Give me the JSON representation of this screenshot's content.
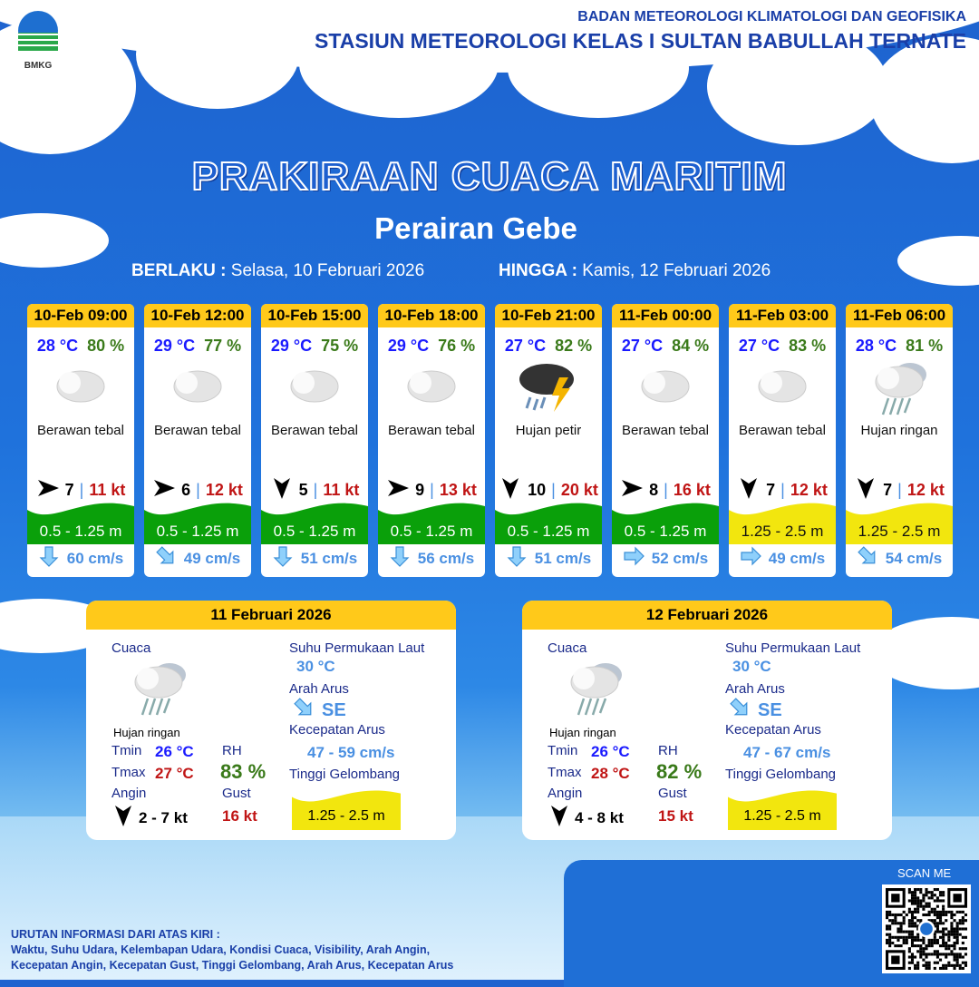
{
  "header": {
    "org": "BADAN METEOROLOGI KLIMATOLOGI DAN GEOFISIKA",
    "station": "STASIUN METEOROLOGI KELAS I SULTAN BABULLAH TERNATE",
    "logo_text": "BMKG"
  },
  "title": "PRAKIRAAN CUACA MARITIM",
  "subtitle": "Perairan Gebe",
  "validity": {
    "from_label": "BERLAKU :",
    "from": "Selasa, 10 Februari 2026",
    "to_label": "HINGGA :",
    "to": "Kamis, 12 Februari 2026"
  },
  "colors": {
    "header_yellow": "#ffc91a",
    "wave_green": "#0aa00a",
    "wave_yellow": "#f2e60e",
    "temp": "#1a1aff",
    "rh": "#3a7a1a",
    "gust": "#c01515",
    "current": "#4a90e2"
  },
  "forecasts": [
    {
      "time": "10-Feb 09:00",
      "temp": "28 °C",
      "rh": "80 %",
      "icon": "cloudy-icon",
      "cond": "Berawan tebal",
      "wind_dir": "east",
      "wind": "7",
      "gust": "11 kt",
      "wave": "0.5 - 1.25 m",
      "wave_color": "green",
      "current_dir": "south",
      "current": "60 cm/s"
    },
    {
      "time": "10-Feb 12:00",
      "temp": "29 °C",
      "rh": "77 %",
      "icon": "cloudy-icon",
      "cond": "Berawan tebal",
      "wind_dir": "east",
      "wind": "6",
      "gust": "12 kt",
      "wave": "0.5 - 1.25 m",
      "wave_color": "green",
      "current_dir": "southeast",
      "current": "49 cm/s"
    },
    {
      "time": "10-Feb 15:00",
      "temp": "29 °C",
      "rh": "75 %",
      "icon": "cloudy-icon",
      "cond": "Berawan tebal",
      "wind_dir": "south",
      "wind": "5",
      "gust": "11 kt",
      "wave": "0.5 - 1.25 m",
      "wave_color": "green",
      "current_dir": "south",
      "current": "51 cm/s"
    },
    {
      "time": "10-Feb 18:00",
      "temp": "29 °C",
      "rh": "76 %",
      "icon": "cloudy-icon",
      "cond": "Berawan tebal",
      "wind_dir": "east",
      "wind": "9",
      "gust": "13 kt",
      "wave": "0.5 - 1.25 m",
      "wave_color": "green",
      "current_dir": "south",
      "current": "56 cm/s"
    },
    {
      "time": "10-Feb 21:00",
      "temp": "27 °C",
      "rh": "82 %",
      "icon": "thunderstorm-icon",
      "cond": "Hujan petir",
      "wind_dir": "south",
      "wind": "10",
      "gust": "20 kt",
      "wave": "0.5 - 1.25 m",
      "wave_color": "green",
      "current_dir": "south",
      "current": "51 cm/s"
    },
    {
      "time": "11-Feb 00:00",
      "temp": "27 °C",
      "rh": "84 %",
      "icon": "cloudy-icon",
      "cond": "Berawan tebal",
      "wind_dir": "east",
      "wind": "8",
      "gust": "16 kt",
      "wave": "0.5 - 1.25 m",
      "wave_color": "green",
      "current_dir": "east",
      "current": "52 cm/s"
    },
    {
      "time": "11-Feb 03:00",
      "temp": "27 °C",
      "rh": "83 %",
      "icon": "cloudy-icon",
      "cond": "Berawan tebal",
      "wind_dir": "south",
      "wind": "7",
      "gust": "12 kt",
      "wave": "1.25 - 2.5 m",
      "wave_color": "yellow",
      "current_dir": "east",
      "current": "49 cm/s"
    },
    {
      "time": "11-Feb 06:00",
      "temp": "28 °C",
      "rh": "81 %",
      "icon": "light-rain-icon",
      "cond": "Hujan ringan",
      "wind_dir": "south",
      "wind": "7",
      "gust": "12 kt",
      "wave": "1.25 - 2.5 m",
      "wave_color": "yellow",
      "current_dir": "southeast",
      "current": "54 cm/s"
    }
  ],
  "daily_labels": {
    "weather": "Cuaca",
    "sst": "Suhu Permukaan Laut",
    "current_dir": "Arah Arus",
    "current_speed": "Kecepatan Arus",
    "wave": "Tinggi Gelombang",
    "tmin": "Tmin",
    "tmax": "Tmax",
    "rh": "RH",
    "wind": "Angin",
    "gust": "Gust"
  },
  "daily": [
    {
      "date": "11 Februari 2026",
      "icon": "light-rain-icon",
      "cond": "Hujan ringan",
      "tmin": "26 °C",
      "tmax": "27 °C",
      "rh": "83 %",
      "wind_dir": "south",
      "wind": "2  - 7 kt",
      "gust": "16 kt",
      "sst": "30 °C",
      "current_dir": "SE",
      "current_speed": "47 - 59 cm/s",
      "wave": "1.25 - 2.5 m"
    },
    {
      "date": "12 Februari 2026",
      "icon": "light-rain-icon",
      "cond": "Hujan ringan",
      "tmin": "26 °C",
      "tmax": "28 °C",
      "rh": "82 %",
      "wind_dir": "south",
      "wind": "4  - 8 kt",
      "gust": "15 kt",
      "sst": "30 °C",
      "current_dir": "SE",
      "current_speed": "47 - 67 cm/s",
      "wave": "1.25 - 2.5 m"
    }
  ],
  "footer": {
    "title": "URUTAN INFORMASI DARI ATAS KIRI :",
    "line1": "Waktu, Suhu Udara, Kelembapan Udara, Kondisi Cuaca, Visibility, Arah Angin,",
    "line2": "Kecepatan Angin, Kecepatan Gust, Tinggi Gelombang, Arah Arus, Kecepatan Arus"
  },
  "qr": {
    "label": "SCAN ME"
  }
}
